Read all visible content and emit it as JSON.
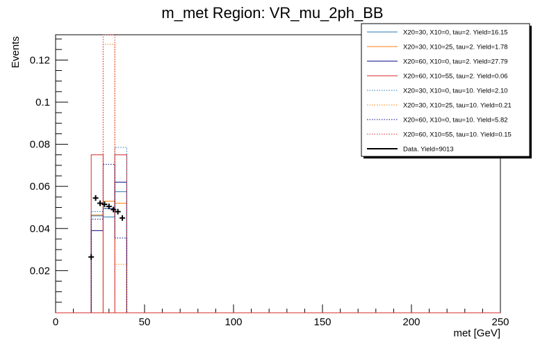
{
  "chart_data": {
    "type": "histogram",
    "title": "m_met Region: VR_mu_2ph_BB",
    "xlabel": "met [GeV]",
    "ylabel": "Events",
    "xlim": [
      0,
      250
    ],
    "ylim": [
      0,
      0.132
    ],
    "x_ticks": [
      "0",
      "50",
      "100",
      "150",
      "200",
      "250"
    ],
    "y_ticks": [
      "0.02",
      "0.04",
      "0.06",
      "0.08",
      "0.1",
      "0.12"
    ],
    "x_tick_values": [
      0,
      50,
      100,
      150,
      200,
      250
    ],
    "y_tick_values": [
      0.02,
      0.04,
      0.06,
      0.08,
      0.1,
      0.12
    ],
    "grid": false,
    "legend_position": "top-right",
    "bin_edges": [
      20,
      26.7,
      33.3,
      40
    ],
    "series": [
      {
        "name": "X20=30, X10=0, tau=2. Yield=16.15",
        "color": "#1f77b4",
        "style": "solid",
        "values": [
          0.046,
          0.0455,
          0.0575
        ]
      },
      {
        "name": "X20=30, X10=25, tau=2. Yield=1.78",
        "color": "#ff7f0e",
        "style": "solid",
        "values": [
          0.0465,
          0.053,
          0.052
        ]
      },
      {
        "name": "X20=60, X10=0, tau=2. Yield=27.79",
        "color": "#000080",
        "style": "solid",
        "values": [
          0.039,
          0.0495,
          0.062
        ]
      },
      {
        "name": "X20=60, X10=55, tau=2. Yield=0.06",
        "color": "#d62728",
        "style": "solid",
        "values": [
          0.075,
          0.0,
          0.075
        ]
      },
      {
        "name": "X20=30, X10=0, tau=10. Yield=2.10",
        "color": "#1f77b4",
        "style": "dotted",
        "values": [
          0.048,
          0.0495,
          0.0785
        ]
      },
      {
        "name": "X20=30, X10=25, tau=10. Yield=0.21",
        "color": "#ff7f0e",
        "style": "dotted",
        "values": [
          0.0,
          0.1275,
          0.023
        ]
      },
      {
        "name": "X20=60, X10=0, tau=10. Yield=5.82",
        "color": "#000080",
        "style": "dotted",
        "values": [
          0.0445,
          0.0705,
          0.0355
        ]
      },
      {
        "name": "X20=60, X10=55, tau=10. Yield=0.15",
        "color": "#d62728",
        "style": "dotted",
        "values": [
          0.0,
          0.132,
          0.0
        ]
      }
    ],
    "data": {
      "name": "Data. Yield=9013",
      "color": "#000000",
      "x": [
        20,
        22.5,
        25,
        27.5,
        30,
        32.5,
        35,
        37.5
      ],
      "y": [
        0.0265,
        0.0545,
        0.052,
        0.0515,
        0.0505,
        0.049,
        0.048,
        0.045
      ]
    }
  }
}
